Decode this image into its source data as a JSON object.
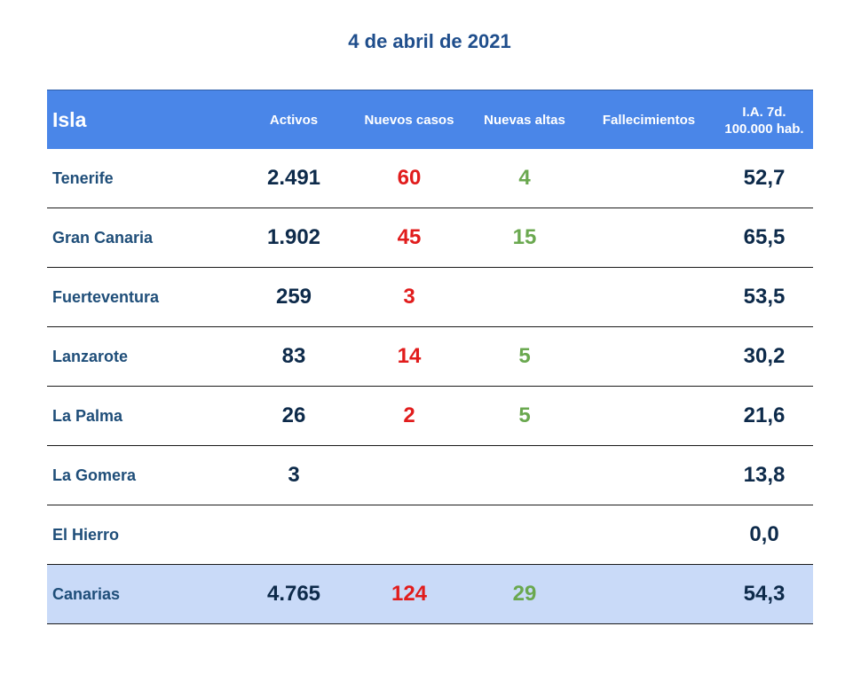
{
  "title": "4 de abril de 2021",
  "colors": {
    "title": "#1f4e8c",
    "header_bg": "#4a86e8",
    "total_bg": "#c9daf8",
    "island_text": "#1f4e79",
    "value_text": "#0d2a4a",
    "new_cases": "#e11c1c",
    "discharges": "#6aa84f"
  },
  "header": {
    "isla": "Isla",
    "activos": "Activos",
    "nuevos_casos": "Nuevos casos",
    "nuevas_altas": "Nuevas altas",
    "fallecimientos": "Fallecimientos",
    "ia_line1": "I.A. 7d.",
    "ia_line2": "100.000 hab."
  },
  "rows": [
    {
      "isla": "Tenerife",
      "activos": "2.491",
      "nuevos_casos": "60",
      "nuevas_altas": "4",
      "fallecimientos": "",
      "ia": "52,7"
    },
    {
      "isla": "Gran Canaria",
      "activos": "1.902",
      "nuevos_casos": "45",
      "nuevas_altas": "15",
      "fallecimientos": "",
      "ia": "65,5"
    },
    {
      "isla": "Fuerteventura",
      "activos": "259",
      "nuevos_casos": "3",
      "nuevas_altas": "",
      "fallecimientos": "",
      "ia": "53,5"
    },
    {
      "isla": "Lanzarote",
      "activos": "83",
      "nuevos_casos": "14",
      "nuevas_altas": "5",
      "fallecimientos": "",
      "ia": "30,2"
    },
    {
      "isla": "La Palma",
      "activos": "26",
      "nuevos_casos": "2",
      "nuevas_altas": "5",
      "fallecimientos": "",
      "ia": "21,6"
    },
    {
      "isla": "La Gomera",
      "activos": "3",
      "nuevos_casos": "",
      "nuevas_altas": "",
      "fallecimientos": "",
      "ia": "13,8"
    },
    {
      "isla": "El Hierro",
      "activos": "",
      "nuevos_casos": "",
      "nuevas_altas": "",
      "fallecimientos": "",
      "ia": "0,0"
    }
  ],
  "total": {
    "isla": "Canarias",
    "activos": "4.765",
    "nuevos_casos": "124",
    "nuevas_altas": "29",
    "fallecimientos": "",
    "ia": "54,3"
  }
}
